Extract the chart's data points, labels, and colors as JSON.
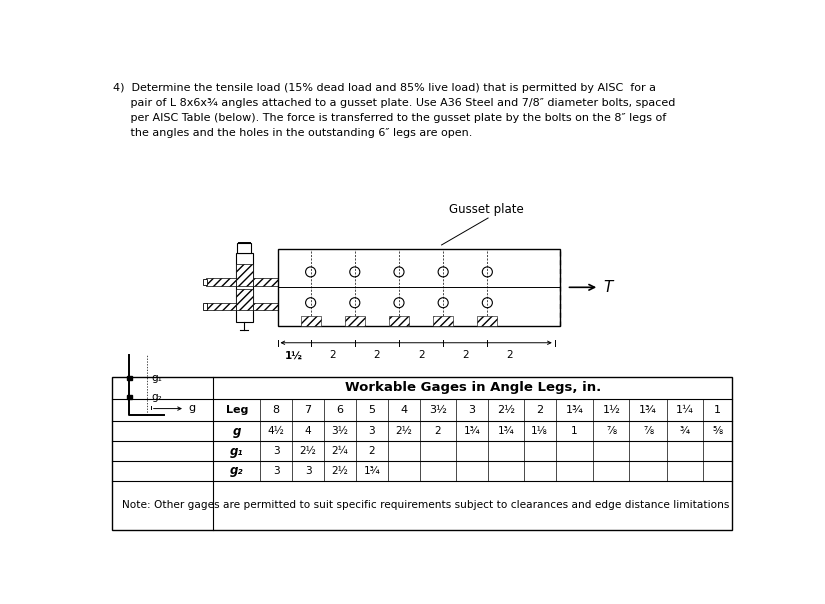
{
  "title_lines": [
    "4)  Determine the tensile load (15% dead load and 85% live load) that is permitted by AISC  for a",
    "     pair of L 8x6x¾ angles attached to a gusset plate. Use A36 Steel and 7/8″ diameter bolts, spaced",
    "     per AISC Table (below). The force is transferred to the gusset plate by the bolts on the 8″ legs of",
    "     the angles and the holes in the outstanding 6″ legs are open."
  ],
  "table_title": "Workable Gages in Angle Legs, in.",
  "leg_headers": [
    "Leg",
    "8",
    "7",
    "6",
    "5",
    "4",
    "3½",
    "3",
    "2½",
    "2",
    "1¾",
    "1½",
    "1¾",
    "1¼",
    "1"
  ],
  "row_g_label": "g",
  "row_g1_label": "g₁",
  "row_g2_label": "g₂",
  "row_g": [
    "4½",
    "4",
    "3½",
    "3",
    "2½",
    "2",
    "1¾",
    "1¾",
    "1⅛",
    "1",
    "⅞",
    "⅞",
    "¾",
    "⅝"
  ],
  "row_g1": [
    "3",
    "2½",
    "2¼",
    "2",
    "",
    "",
    "",
    "",
    "",
    "",
    "",
    "",
    "",
    ""
  ],
  "row_g2": [
    "3",
    "3",
    "2½",
    "1¾",
    "",
    "",
    "",
    "",
    "",
    "",
    "",
    "",
    "",
    ""
  ],
  "note": "Note: Other gages are permitted to suit specific requirements subject to clearances and edge distance limitations",
  "gusset_label": "Gusset plate",
  "T_label": "T",
  "dim_labels": [
    "1½",
    "2",
    "2",
    "2",
    "2",
    "2"
  ],
  "bg_color": "#ffffff"
}
